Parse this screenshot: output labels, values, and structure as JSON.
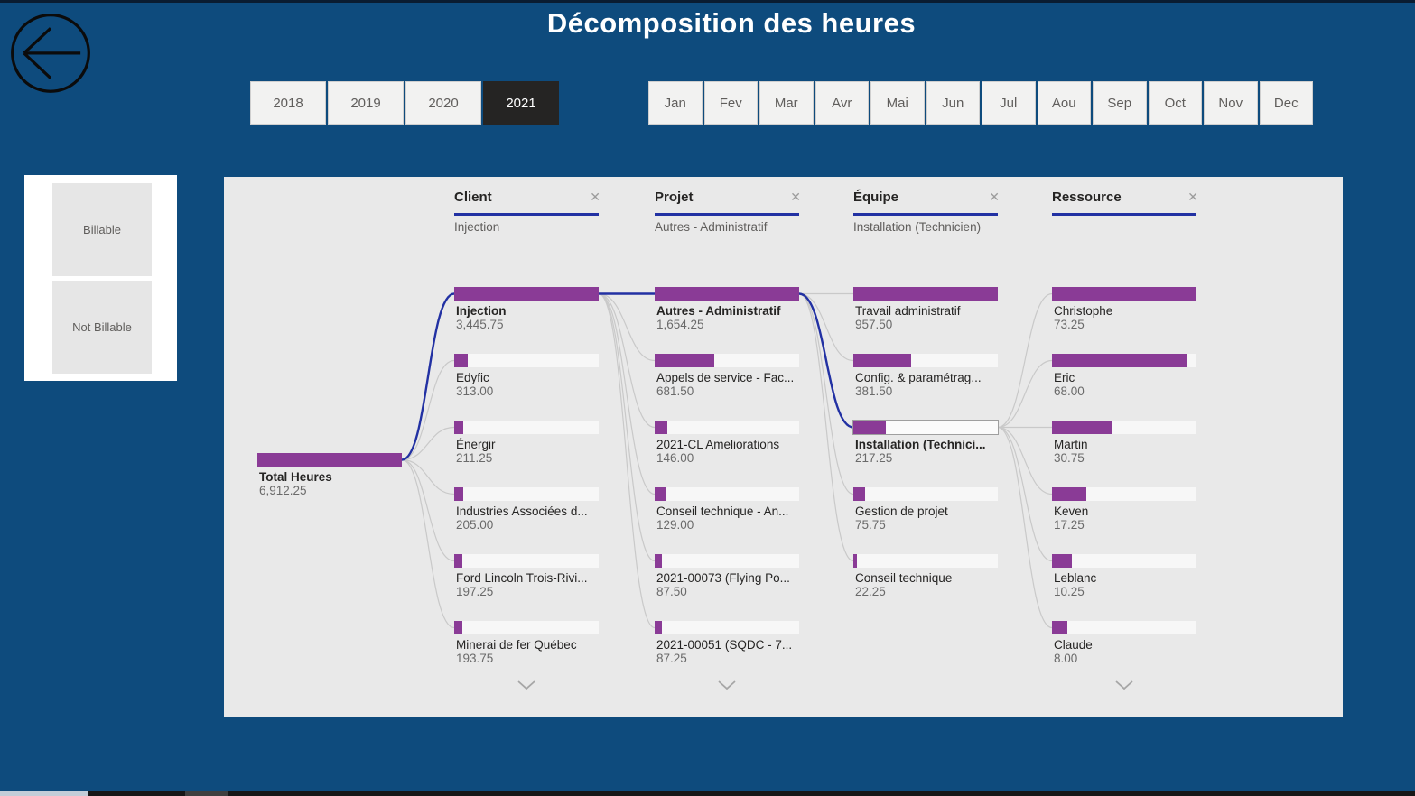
{
  "window": {
    "title": "Décomposition des heures"
  },
  "colors": {
    "background": "#0e4b7d",
    "panel": "#e9e9e9",
    "bar_fill": "#8a3b96",
    "bar_track": "#f7f7f7",
    "selected_path": "#2231a3",
    "connector": "#c9c9c9",
    "header_underline": "#2231a3",
    "selected_button_bg": "#252423"
  },
  "year_slicer": {
    "options": [
      "2018",
      "2019",
      "2020",
      "2021"
    ],
    "selected": "2021"
  },
  "month_slicer": {
    "options": [
      "Jan",
      "Fev",
      "Mar",
      "Avr",
      "Mai",
      "Jun",
      "Jul",
      "Aou",
      "Sep",
      "Oct",
      "Nov",
      "Dec"
    ],
    "selected": null
  },
  "billable_slicer": {
    "options": [
      "Billable",
      "Not Billable"
    ]
  },
  "chart_data": {
    "type": "decomposition-tree",
    "title": "Décomposition des heures",
    "measure": "Heures",
    "root": {
      "label": "Total Heures",
      "value": 6912.25,
      "display": "6,912.25"
    },
    "levels": [
      {
        "field": "Client",
        "selected": "Injection",
        "has_more": true,
        "nodes": [
          {
            "label": "Injection",
            "value": 3445.75,
            "display": "3,445.75",
            "selected": true
          },
          {
            "label": "Edyfic",
            "value": 313.0,
            "display": "313.00"
          },
          {
            "label": "Énergir",
            "value": 211.25,
            "display": "211.25"
          },
          {
            "label": "Industries Associées d...",
            "value": 205.0,
            "display": "205.00"
          },
          {
            "label": "Ford Lincoln Trois-Rivi...",
            "value": 197.25,
            "display": "197.25"
          },
          {
            "label": "Minerai de fer Québec",
            "value": 193.75,
            "display": "193.75"
          }
        ]
      },
      {
        "field": "Projet",
        "selected": "Autres - Administratif",
        "has_more": true,
        "nodes": [
          {
            "label": "Autres - Administratif",
            "value": 1654.25,
            "display": "1,654.25",
            "selected": true
          },
          {
            "label": "Appels de service - Fac...",
            "value": 681.5,
            "display": "681.50"
          },
          {
            "label": "2021-CL Ameliorations",
            "value": 146.0,
            "display": "146.00"
          },
          {
            "label": "Conseil technique - An...",
            "value": 129.0,
            "display": "129.00"
          },
          {
            "label": "2021-00073 (Flying Po...",
            "value": 87.5,
            "display": "87.50"
          },
          {
            "label": "2021-00051 (SQDC - 7...",
            "value": 87.25,
            "display": "87.25"
          }
        ]
      },
      {
        "field": "Équipe",
        "selected": "Installation (Technicien)",
        "has_more": false,
        "nodes": [
          {
            "label": "Travail administratif",
            "value": 957.5,
            "display": "957.50"
          },
          {
            "label": "Config. & paramétrag...",
            "value": 381.5,
            "display": "381.50"
          },
          {
            "label": "Installation (Technici...",
            "value": 217.25,
            "display": "217.25",
            "selected": true,
            "outlined": true
          },
          {
            "label": "Gestion de projet",
            "value": 75.75,
            "display": "75.75"
          },
          {
            "label": "Conseil technique",
            "value": 22.25,
            "display": "22.25"
          }
        ]
      },
      {
        "field": "Ressource",
        "selected": null,
        "has_more": true,
        "nodes": [
          {
            "label": "Christophe",
            "value": 73.25,
            "display": "73.25"
          },
          {
            "label": "Eric",
            "value": 68.0,
            "display": "68.00"
          },
          {
            "label": "Martin",
            "value": 30.75,
            "display": "30.75"
          },
          {
            "label": "Keven",
            "value": 17.25,
            "display": "17.25"
          },
          {
            "label": "Leblanc",
            "value": 10.25,
            "display": "10.25"
          },
          {
            "label": "Claude",
            "value": 8.0,
            "display": "8.00"
          }
        ]
      }
    ]
  }
}
